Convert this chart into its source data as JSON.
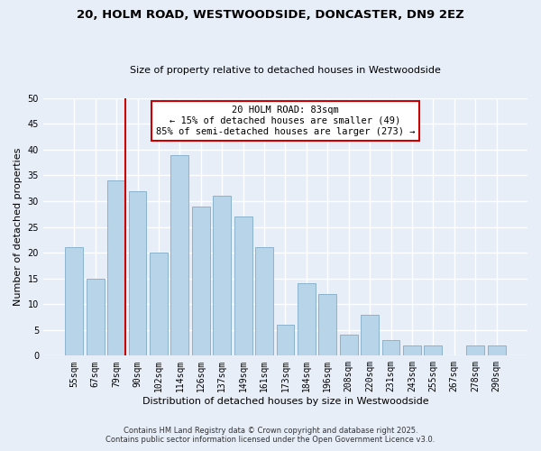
{
  "title1": "20, HOLM ROAD, WESTWOODSIDE, DONCASTER, DN9 2EZ",
  "title2": "Size of property relative to detached houses in Westwoodside",
  "xlabel": "Distribution of detached houses by size in Westwoodside",
  "ylabel": "Number of detached properties",
  "bar_labels": [
    "55sqm",
    "67sqm",
    "79sqm",
    "90sqm",
    "102sqm",
    "114sqm",
    "126sqm",
    "137sqm",
    "149sqm",
    "161sqm",
    "173sqm",
    "184sqm",
    "196sqm",
    "208sqm",
    "220sqm",
    "231sqm",
    "243sqm",
    "255sqm",
    "267sqm",
    "278sqm",
    "290sqm"
  ],
  "bar_values": [
    21,
    15,
    34,
    32,
    20,
    39,
    29,
    31,
    27,
    21,
    6,
    14,
    12,
    4,
    8,
    3,
    2,
    2,
    0,
    2,
    2
  ],
  "bar_color": "#b8d4e8",
  "bar_edge_color": "#8ab4cc",
  "background_color": "#e8eef8",
  "grid_color": "#ffffff",
  "vline_index": 2,
  "vline_color": "#cc0000",
  "annotation_line1": "20 HOLM ROAD: 83sqm",
  "annotation_line2": "← 15% of detached houses are smaller (49)",
  "annotation_line3": "85% of semi-detached houses are larger (273) →",
  "annotation_box_color": "#ffffff",
  "annotation_box_edge": "#cc0000",
  "ylim": [
    0,
    50
  ],
  "yticks": [
    0,
    5,
    10,
    15,
    20,
    25,
    30,
    35,
    40,
    45,
    50
  ],
  "footer1": "Contains HM Land Registry data © Crown copyright and database right 2025.",
  "footer2": "Contains public sector information licensed under the Open Government Licence v3.0."
}
